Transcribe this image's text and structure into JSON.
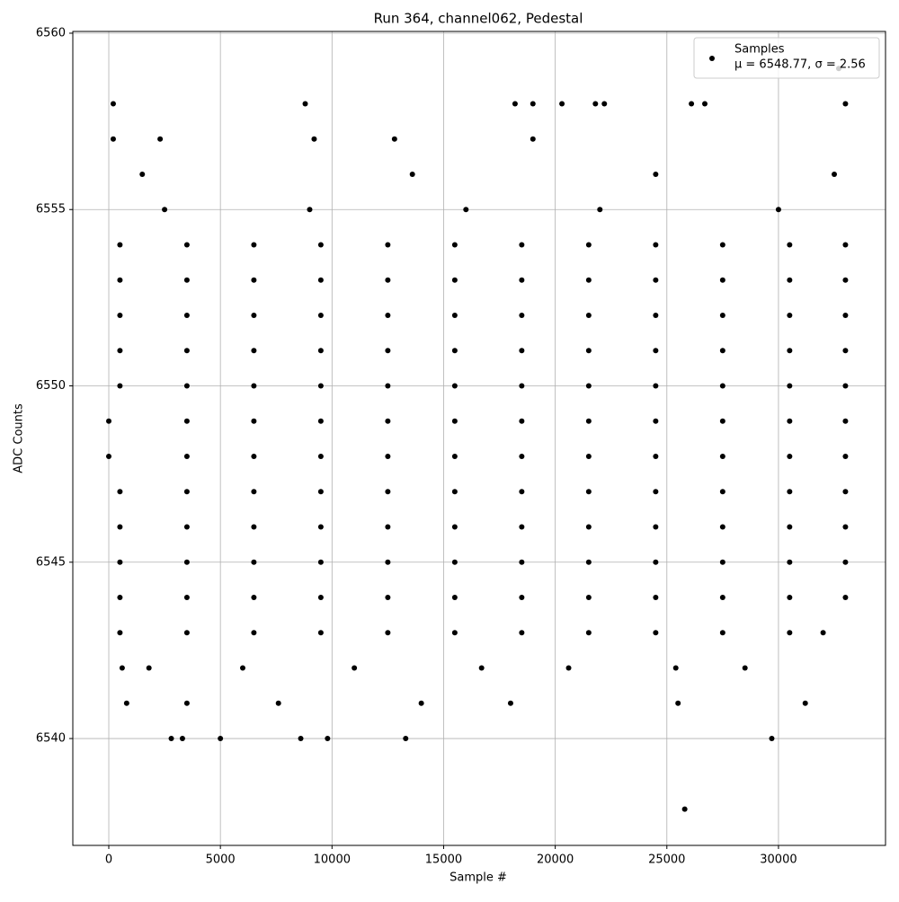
{
  "chart_data": {
    "type": "scatter",
    "title": "Run 364, channel062, Pedestal",
    "x_label": "Sample #",
    "y_label": "ADC Counts",
    "xlim": [
      -1611,
      34795
    ],
    "xticks": [
      0,
      5000,
      10000,
      15000,
      20000,
      25000,
      30000
    ],
    "ylim": [
      6536.97,
      6560.05
    ],
    "yticks": [
      6540,
      6545,
      6550,
      6555,
      6560
    ],
    "grid": true,
    "legend": "upper right",
    "legend_note": "μ = 6548.77, σ = 2.56",
    "x": [
      500,
      3500,
      6500,
      9500,
      12500,
      15500,
      18500,
      21500,
      24500,
      27500,
      30500,
      33000,
      500,
      3500,
      6500,
      9500,
      12500,
      15500,
      18500,
      21500,
      24500,
      27500,
      30500,
      33000,
      500,
      3500,
      6500,
      9500,
      12500,
      15500,
      18500,
      21500,
      24500,
      27500,
      30500,
      33000,
      500,
      3500,
      6500,
      9500,
      12500,
      15500,
      18500,
      21500,
      24500,
      27500,
      30500,
      33000,
      500,
      3500,
      6500,
      9500,
      12500,
      15500,
      18500,
      21500,
      24500,
      27500,
      30500,
      33000,
      0,
      3500,
      6500,
      9500,
      12500,
      15500,
      18500,
      21500,
      24500,
      27500,
      30500,
      33000,
      0,
      3500,
      6500,
      9500,
      12500,
      15500,
      18500,
      21500,
      24500,
      27500,
      30500,
      33000,
      500,
      3500,
      6500,
      9500,
      12500,
      15500,
      18500,
      21500,
      24500,
      27500,
      30500,
      33000,
      500,
      3500,
      6500,
      9500,
      12500,
      15500,
      18500,
      21500,
      24500,
      27500,
      30500,
      33000,
      500,
      3500,
      6500,
      9500,
      12500,
      15500,
      18500,
      21500,
      24500,
      27500,
      30500,
      33000,
      500,
      3500,
      6500,
      9500,
      12500,
      15500,
      18500,
      21500,
      24500,
      27500,
      30500,
      33000,
      500,
      3500,
      6500,
      9500,
      12500,
      15500,
      18500,
      21500,
      24500,
      27500,
      30500,
      32000,
      200,
      8800,
      18200,
      19000,
      20300,
      21800,
      22200,
      26100,
      26700,
      33000,
      32700,
      25800,
      2800,
      3300,
      5000,
      8600,
      9800,
      13300,
      29700,
      200,
      2300,
      9200,
      12800,
      19000,
      600,
      1800,
      6000,
      11000,
      16700,
      20600,
      25400,
      28500,
      800,
      3500,
      7600,
      14000,
      18000,
      25500,
      31200,
      2500,
      9000,
      16000,
      22000,
      30000,
      1500,
      13600,
      24500,
      32500
    ],
    "series": [
      {
        "name": "Samples",
        "color": "#000000",
        "values": [
          6554,
          6554,
          6554,
          6554,
          6554,
          6554,
          6554,
          6554,
          6554,
          6554,
          6554,
          6554,
          6553,
          6553,
          6553,
          6553,
          6553,
          6553,
          6553,
          6553,
          6553,
          6553,
          6553,
          6553,
          6552,
          6552,
          6552,
          6552,
          6552,
          6552,
          6552,
          6552,
          6552,
          6552,
          6552,
          6552,
          6551,
          6551,
          6551,
          6551,
          6551,
          6551,
          6551,
          6551,
          6551,
          6551,
          6551,
          6551,
          6550,
          6550,
          6550,
          6550,
          6550,
          6550,
          6550,
          6550,
          6550,
          6550,
          6550,
          6550,
          6549,
          6549,
          6549,
          6549,
          6549,
          6549,
          6549,
          6549,
          6549,
          6549,
          6549,
          6549,
          6548,
          6548,
          6548,
          6548,
          6548,
          6548,
          6548,
          6548,
          6548,
          6548,
          6548,
          6548,
          6547,
          6547,
          6547,
          6547,
          6547,
          6547,
          6547,
          6547,
          6547,
          6547,
          6547,
          6547,
          6546,
          6546,
          6546,
          6546,
          6546,
          6546,
          6546,
          6546,
          6546,
          6546,
          6546,
          6546,
          6545,
          6545,
          6545,
          6545,
          6545,
          6545,
          6545,
          6545,
          6545,
          6545,
          6545,
          6545,
          6544,
          6544,
          6544,
          6544,
          6544,
          6544,
          6544,
          6544,
          6544,
          6544,
          6544,
          6544,
          6543,
          6543,
          6543,
          6543,
          6543,
          6543,
          6543,
          6543,
          6543,
          6543,
          6543,
          6543,
          6558,
          6558,
          6558,
          6558,
          6558,
          6558,
          6558,
          6558,
          6558,
          6558,
          6559,
          6538,
          6540,
          6540,
          6540,
          6540,
          6540,
          6540,
          6540,
          6557,
          6557,
          6557,
          6557,
          6557,
          6542,
          6542,
          6542,
          6542,
          6542,
          6542,
          6542,
          6542,
          6541,
          6541,
          6541,
          6541,
          6541,
          6541,
          6541,
          6555,
          6555,
          6555,
          6555,
          6555,
          6556,
          6556,
          6556,
          6556
        ]
      }
    ]
  }
}
